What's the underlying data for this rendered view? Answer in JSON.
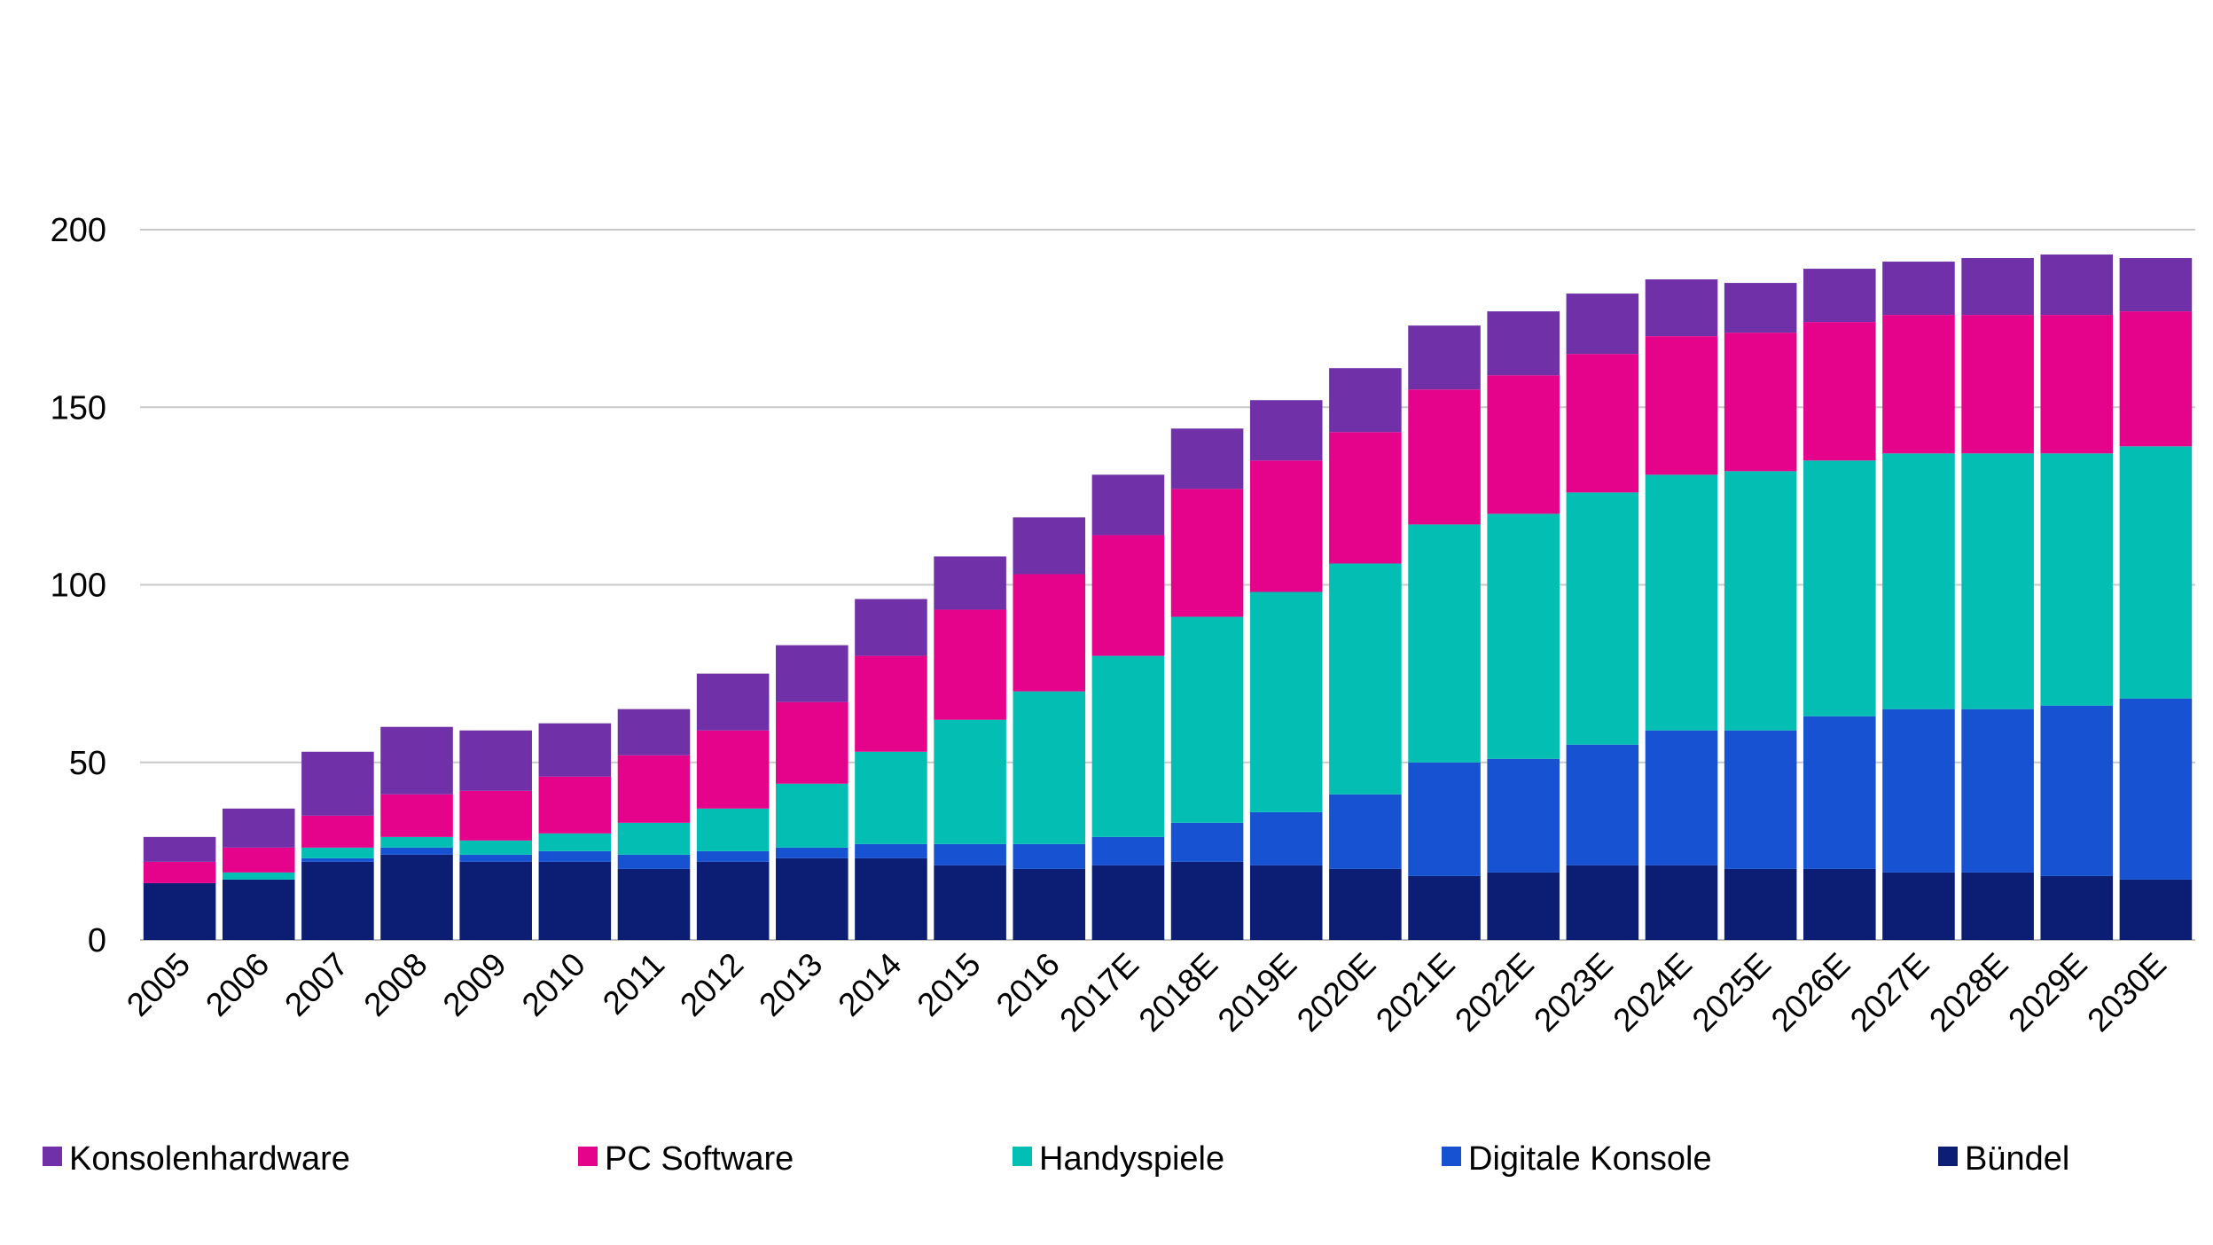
{
  "chart_data": {
    "type": "bar",
    "stacked": true,
    "title": "",
    "xlabel": "",
    "ylabel": "",
    "ylim": [
      0,
      200
    ],
    "yticks": [
      0,
      50,
      100,
      150,
      200
    ],
    "grid": true,
    "legend_position": "bottom",
    "categories": [
      "2005",
      "2006",
      "2007",
      "2008",
      "2009",
      "2010",
      "2011",
      "2012",
      "2013",
      "2014",
      "2015",
      "2016",
      "2017E",
      "2018E",
      "2019E",
      "2020E",
      "2021E",
      "2022E",
      "2023E",
      "2024E",
      "2025E",
      "2026E",
      "2027E",
      "2028E",
      "2029E",
      "2030E"
    ],
    "series": [
      {
        "name": "Bündel",
        "color": "#0c1d74",
        "values": [
          16,
          17,
          22,
          24,
          22,
          22,
          20,
          22,
          23,
          23,
          21,
          20,
          21,
          22,
          21,
          20,
          18,
          19,
          21,
          21,
          20,
          20,
          19,
          19,
          18,
          17
        ]
      },
      {
        "name": "Digitale Konsole",
        "color": "#1652d1",
        "values": [
          0,
          0,
          1,
          2,
          2,
          3,
          4,
          3,
          3,
          4,
          6,
          7,
          8,
          11,
          15,
          21,
          32,
          32,
          34,
          38,
          39,
          43,
          46,
          46,
          48,
          51
        ]
      },
      {
        "name": "Handyspiele",
        "color": "#03bfb3",
        "values": [
          0,
          2,
          3,
          3,
          4,
          5,
          9,
          12,
          18,
          26,
          35,
          43,
          51,
          58,
          62,
          65,
          67,
          69,
          71,
          72,
          73,
          72,
          72,
          72,
          71,
          71
        ]
      },
      {
        "name": "PC Software",
        "color": "#e5038b",
        "values": [
          6,
          7,
          9,
          12,
          14,
          16,
          19,
          22,
          23,
          27,
          31,
          33,
          34,
          36,
          37,
          37,
          38,
          39,
          39,
          39,
          39,
          39,
          39,
          39,
          39,
          38
        ]
      },
      {
        "name": "Konsolenhardware",
        "color": "#7030a8",
        "values": [
          7,
          11,
          18,
          19,
          17,
          15,
          13,
          16,
          16,
          16,
          15,
          16,
          17,
          17,
          17,
          18,
          18,
          18,
          17,
          16,
          14,
          15,
          15,
          16,
          17,
          15
        ]
      }
    ],
    "legend_order": [
      "Konsolenhardware",
      "PC Software",
      "Handyspiele",
      "Digitale Konsole",
      "Bündel"
    ]
  }
}
